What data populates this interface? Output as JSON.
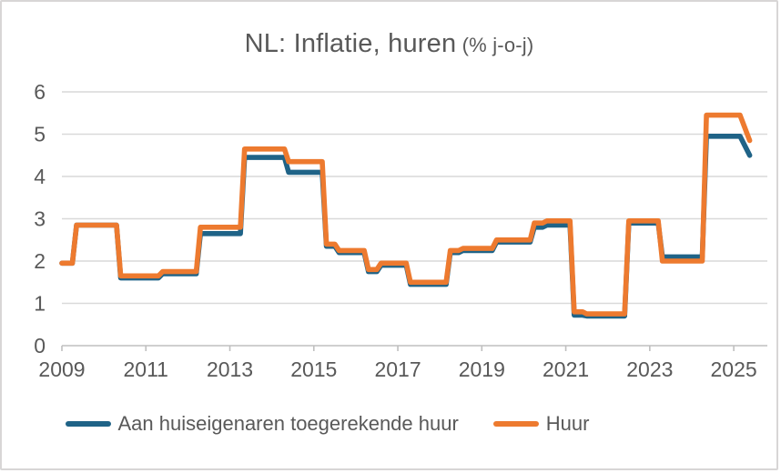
{
  "chart_data": {
    "type": "line",
    "subtype": "step",
    "title": "NL: Inflatie, huren",
    "title_suffix": " (% j-o-j)",
    "xlabel": "",
    "ylabel": "",
    "x_unit": "decimal_year",
    "xlim": [
      2009,
      2025.8
    ],
    "ylim": [
      0,
      6
    ],
    "x_ticks": [
      2009,
      2011,
      2013,
      2015,
      2017,
      2019,
      2021,
      2023,
      2025
    ],
    "y_ticks": [
      0,
      1,
      2,
      3,
      4,
      5,
      6
    ],
    "grid": "horizontal",
    "legend_position": "bottom",
    "colors": {
      "grid": "#d9d9d9",
      "axis": "#bfbfbf",
      "text": "#595959",
      "blue_series": "#1f6387",
      "orange_series": "#ed7a2f"
    },
    "series": [
      {
        "name": "Aan huiseigenaren toegerekende huur",
        "color": "#1f6387",
        "x": [
          2009.0,
          2009.25,
          2009.35,
          2010.3,
          2010.4,
          2011.3,
          2011.4,
          2012.2,
          2012.3,
          2013.25,
          2013.35,
          2014.3,
          2014.4,
          2015.2,
          2015.3,
          2015.5,
          2015.6,
          2016.2,
          2016.3,
          2016.5,
          2016.6,
          2017.2,
          2017.3,
          2018.15,
          2018.25,
          2018.45,
          2018.55,
          2019.25,
          2019.35,
          2020.15,
          2020.25,
          2020.45,
          2020.55,
          2021.1,
          2021.2,
          2021.4,
          2021.5,
          2022.4,
          2022.5,
          2023.2,
          2023.3,
          2024.25,
          2024.35,
          2025.15,
          2025.38
        ],
        "y": [
          1.95,
          1.95,
          2.85,
          2.85,
          1.6,
          1.6,
          1.7,
          1.7,
          2.65,
          2.65,
          4.45,
          4.45,
          4.1,
          4.1,
          2.35,
          2.35,
          2.2,
          2.2,
          1.75,
          1.75,
          1.9,
          1.9,
          1.45,
          1.45,
          2.2,
          2.2,
          2.25,
          2.25,
          2.45,
          2.45,
          2.8,
          2.8,
          2.85,
          2.85,
          0.72,
          0.72,
          0.7,
          0.7,
          2.9,
          2.9,
          2.1,
          2.1,
          4.95,
          4.95,
          4.5
        ]
      },
      {
        "name": "Huur",
        "color": "#ed7a2f",
        "x": [
          2009.0,
          2009.25,
          2009.35,
          2010.3,
          2010.4,
          2011.3,
          2011.4,
          2012.2,
          2012.3,
          2013.25,
          2013.35,
          2014.3,
          2014.4,
          2015.2,
          2015.3,
          2015.5,
          2015.6,
          2016.2,
          2016.3,
          2016.5,
          2016.6,
          2017.2,
          2017.3,
          2018.15,
          2018.25,
          2018.45,
          2018.55,
          2019.25,
          2019.35,
          2020.15,
          2020.25,
          2020.45,
          2020.55,
          2021.1,
          2021.2,
          2021.4,
          2021.5,
          2022.4,
          2022.5,
          2023.2,
          2023.3,
          2024.25,
          2024.35,
          2025.15,
          2025.38
        ],
        "y": [
          1.95,
          1.95,
          2.85,
          2.85,
          1.65,
          1.65,
          1.75,
          1.75,
          2.8,
          2.8,
          4.65,
          4.65,
          4.35,
          4.35,
          2.4,
          2.4,
          2.25,
          2.25,
          1.8,
          1.8,
          1.95,
          1.95,
          1.5,
          1.5,
          2.25,
          2.25,
          2.3,
          2.3,
          2.5,
          2.5,
          2.9,
          2.9,
          2.95,
          2.95,
          0.8,
          0.8,
          0.75,
          0.75,
          2.95,
          2.95,
          2.0,
          2.0,
          5.45,
          5.45,
          4.85
        ]
      }
    ]
  }
}
